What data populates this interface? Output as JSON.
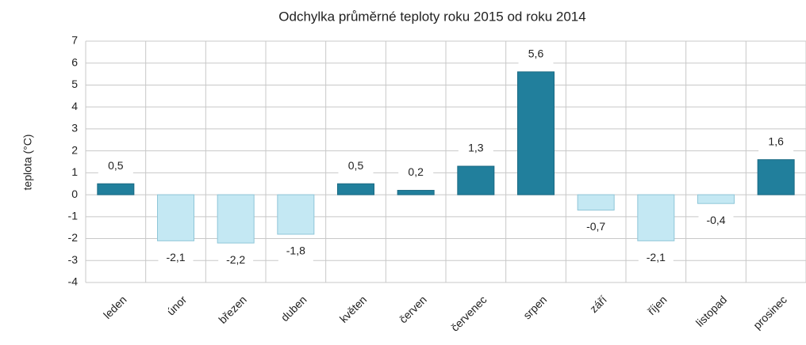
{
  "chart_data": {
    "type": "bar",
    "title": "Odchylka průměrné teploty roku 2015 od roku 2014",
    "y_label": "teplota (°C)",
    "categories": [
      "leden",
      "únor",
      "březen",
      "duben",
      "květen",
      "červen",
      "červenec",
      "srpen",
      "září",
      "říjen",
      "listopad",
      "prosinec"
    ],
    "values": [
      0.5,
      -2.1,
      -2.2,
      -1.8,
      0.5,
      0.2,
      1.3,
      5.6,
      -0.7,
      -2.1,
      -0.4,
      1.6
    ],
    "value_labels": [
      "0,5",
      "-2,1",
      "-2,2",
      "-1,8",
      "0,5",
      "0,2",
      "1,3",
      "5,6",
      "-0,7",
      "-2,1",
      "-0,4",
      "1,6"
    ],
    "positive_color": "#217f9c",
    "negative_color": "#c4e8f3",
    "ylim": [
      -4,
      7
    ],
    "yticks": [
      -4,
      -3,
      -2,
      -1,
      0,
      1,
      2,
      3,
      4,
      5,
      6,
      7
    ],
    "grid": true
  }
}
